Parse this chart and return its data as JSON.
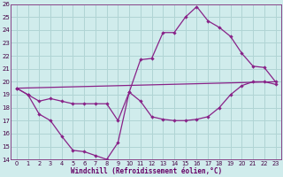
{
  "xlabel": "Windchill (Refroidissement éolien,°C)",
  "xlim": [
    -0.5,
    23.5
  ],
  "ylim": [
    14,
    26
  ],
  "yticks": [
    14,
    15,
    16,
    17,
    18,
    19,
    20,
    21,
    22,
    23,
    24,
    25,
    26
  ],
  "xticks": [
    0,
    1,
    2,
    3,
    4,
    5,
    6,
    7,
    8,
    9,
    10,
    11,
    12,
    13,
    14,
    15,
    16,
    17,
    18,
    19,
    20,
    21,
    22,
    23
  ],
  "background_color": "#d0ecec",
  "grid_color": "#b0d4d4",
  "line_color": "#882288",
  "line1_x": [
    0,
    1,
    2,
    3,
    4,
    5,
    6,
    7,
    8,
    9,
    10,
    11,
    12,
    13,
    14,
    15,
    16,
    17,
    18,
    19,
    20,
    21,
    22,
    23
  ],
  "line1_y": [
    19.5,
    19.0,
    17.5,
    17.0,
    15.8,
    14.7,
    14.6,
    14.3,
    14.0,
    15.3,
    19.2,
    18.5,
    17.3,
    17.1,
    17.0,
    17.0,
    17.1,
    17.3,
    18.0,
    19.0,
    19.7,
    20.0,
    20.0,
    19.8
  ],
  "line2_x": [
    0,
    1,
    2,
    3,
    4,
    5,
    6,
    7,
    8,
    9,
    10,
    11,
    12,
    13,
    14,
    15,
    16,
    17,
    18,
    19,
    20,
    21,
    22,
    23
  ],
  "line2_y": [
    19.5,
    19.0,
    18.5,
    18.7,
    18.5,
    18.3,
    18.3,
    18.3,
    18.3,
    17.0,
    19.2,
    21.7,
    21.8,
    23.8,
    23.8,
    25.0,
    25.8,
    24.7,
    24.2,
    23.5,
    22.2,
    21.2,
    21.1,
    20.0
  ],
  "line3_x": [
    0,
    23
  ],
  "line3_y": [
    19.5,
    20.0
  ],
  "xlabel_color": "#660066",
  "spine_color": "#884488"
}
